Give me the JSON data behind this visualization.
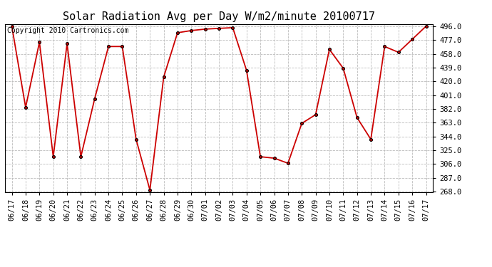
{
  "title": "Solar Radiation Avg per Day W/m2/minute 20100717",
  "copyright": "Copyright 2010 Cartronics.com",
  "labels": [
    "06/17",
    "06/18",
    "06/19",
    "06/20",
    "06/21",
    "06/22",
    "06/23",
    "06/24",
    "06/25",
    "06/26",
    "06/27",
    "06/28",
    "06/29",
    "06/30",
    "07/01",
    "07/02",
    "07/03",
    "07/04",
    "07/05",
    "07/06",
    "07/07",
    "07/08",
    "07/09",
    "07/10",
    "07/11",
    "07/12",
    "07/13",
    "07/14",
    "07/15",
    "07/16",
    "07/17"
  ],
  "values": [
    496.0,
    384.0,
    474.0,
    316.0,
    472.0,
    316.0,
    396.0,
    468.0,
    468.0,
    340.0,
    270.0,
    426.0,
    487.0,
    490.0,
    492.0,
    493.0,
    494.0,
    435.0,
    316.0,
    314.0,
    307.0,
    362.0,
    374.0,
    464.0,
    438.0,
    370.0,
    340.0,
    468.0,
    460.0,
    478.0,
    496.0
  ],
  "ymin": 268.0,
  "ymax": 496.0,
  "yticks": [
    268.0,
    287.0,
    306.0,
    325.0,
    344.0,
    363.0,
    382.0,
    401.0,
    420.0,
    439.0,
    458.0,
    477.0,
    496.0
  ],
  "line_color": "#cc0000",
  "marker_color": "#000000",
  "marker_face": "#cc0000",
  "bg_color": "#ffffff",
  "grid_color": "#bbbbbb",
  "title_fontsize": 11,
  "tick_fontsize": 7.5,
  "copyright_fontsize": 7
}
